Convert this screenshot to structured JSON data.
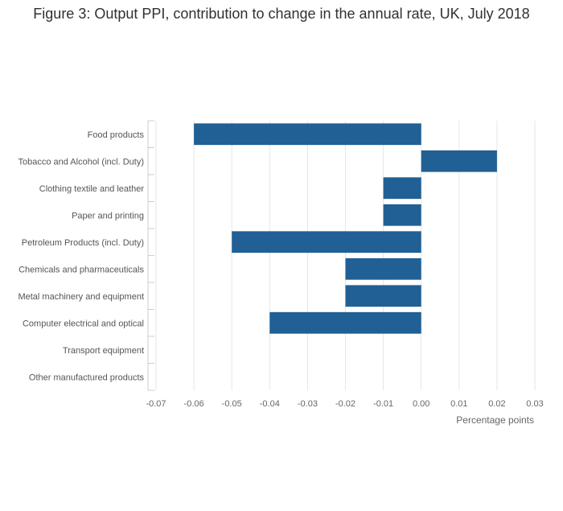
{
  "chart_data": {
    "type": "bar",
    "orientation": "horizontal",
    "title": "Figure 3: Output PPI, contribution to change in the annual rate, UK, July 2018",
    "categories": [
      "Food products",
      "Tobacco and Alcohol (incl. Duty)",
      "Clothing textile and leather",
      "Paper and printing",
      "Petroleum Products (incl. Duty)",
      "Chemicals and pharmaceuticals",
      "Metal machinery and equipment",
      "Computer electrical and optical",
      "Transport equipment",
      "Other manufactured products"
    ],
    "values": [
      -0.06,
      0.02,
      -0.01,
      -0.01,
      -0.05,
      -0.02,
      -0.02,
      -0.04,
      0.0,
      0.0
    ],
    "xlabel": "Percentage points",
    "ylabel": "",
    "xlim": [
      -0.07,
      0.03
    ],
    "xticks": [
      "-0.07",
      "-0.06",
      "-0.05",
      "-0.04",
      "-0.03",
      "-0.02",
      "-0.01",
      "0.00",
      "0.01",
      "0.02",
      "0.03"
    ],
    "grid": "vertical",
    "legend": "none",
    "bar_color": "#206095"
  }
}
